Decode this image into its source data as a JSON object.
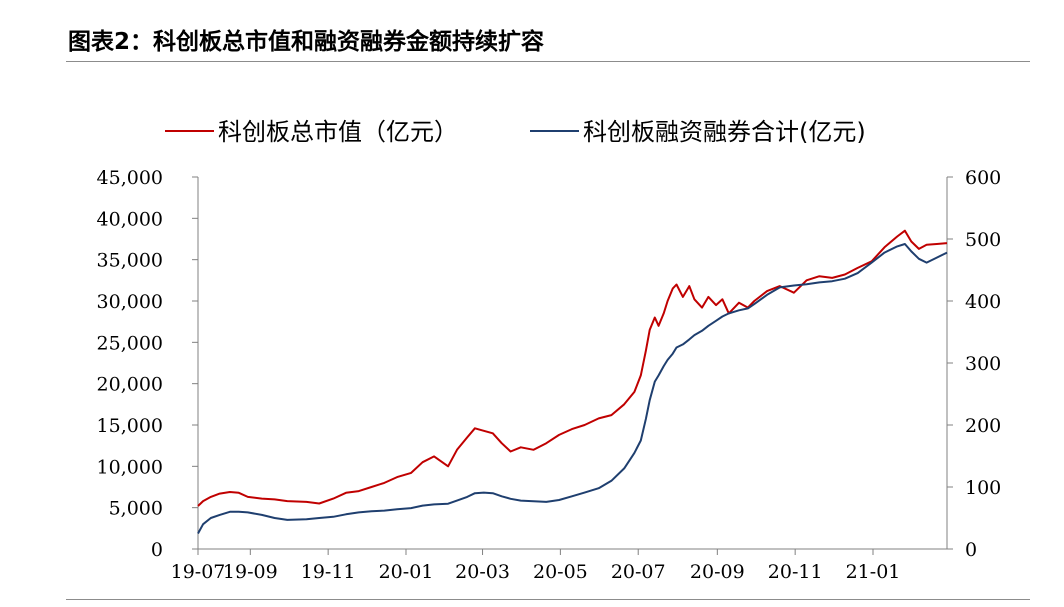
{
  "figure": {
    "title": "图表2：科创板总市值和融资融券金额持续扩容"
  },
  "colors": {
    "series_market_cap": "#c00000",
    "series_margin": "#1f3f6f",
    "axis": "#808080"
  },
  "chart_data": {
    "type": "line",
    "title": "",
    "xlabel": "",
    "ylabel": "",
    "ylabel_right": "",
    "x_ticks": [
      "19-07",
      "19-09",
      "19-11",
      "20-01",
      "20-03",
      "20-05",
      "20-07",
      "20-09",
      "20-11",
      "21-01"
    ],
    "y_left": {
      "lim": [
        0,
        45000
      ],
      "ticks": [
        "0",
        "5,000",
        "10,000",
        "15,000",
        "20,000",
        "25,000",
        "30,000",
        "35,000",
        "40,000",
        "45,000"
      ]
    },
    "y_right": {
      "lim": [
        0,
        600
      ],
      "ticks": [
        "0",
        "100",
        "200",
        "300",
        "400",
        "500",
        "600"
      ]
    },
    "x_range": [
      "2019-07-22",
      "2021-02-28"
    ],
    "legend_position": "top",
    "series": [
      {
        "name": "科创板总市值（亿元）",
        "axis": "left",
        "points": [
          [
            "2019-07-22",
            5200
          ],
          [
            "2019-07-26",
            5800
          ],
          [
            "2019-08-01",
            6300
          ],
          [
            "2019-08-08",
            6700
          ],
          [
            "2019-08-16",
            6900
          ],
          [
            "2019-08-23",
            6800
          ],
          [
            "2019-08-30",
            6300
          ],
          [
            "2019-09-10",
            6100
          ],
          [
            "2019-09-20",
            6000
          ],
          [
            "2019-09-30",
            5800
          ],
          [
            "2019-10-15",
            5700
          ],
          [
            "2019-10-25",
            5500
          ],
          [
            "2019-11-05",
            6100
          ],
          [
            "2019-11-15",
            6800
          ],
          [
            "2019-11-25",
            7000
          ],
          [
            "2019-12-05",
            7500
          ],
          [
            "2019-12-15",
            8000
          ],
          [
            "2019-12-25",
            8700
          ],
          [
            "2020-01-05",
            9200
          ],
          [
            "2020-01-14",
            10500
          ],
          [
            "2020-01-23",
            11200
          ],
          [
            "2020-02-03",
            10000
          ],
          [
            "2020-02-10",
            12000
          ],
          [
            "2020-02-18",
            13500
          ],
          [
            "2020-02-24",
            14600
          ],
          [
            "2020-03-02",
            14300
          ],
          [
            "2020-03-09",
            14000
          ],
          [
            "2020-03-16",
            12800
          ],
          [
            "2020-03-23",
            11800
          ],
          [
            "2020-03-31",
            12300
          ],
          [
            "2020-04-10",
            12000
          ],
          [
            "2020-04-20",
            12800
          ],
          [
            "2020-04-30",
            13800
          ],
          [
            "2020-05-10",
            14500
          ],
          [
            "2020-05-20",
            15000
          ],
          [
            "2020-05-31",
            15800
          ],
          [
            "2020-06-10",
            16200
          ],
          [
            "2020-06-20",
            17500
          ],
          [
            "2020-06-28",
            19000
          ],
          [
            "2020-07-03",
            21000
          ],
          [
            "2020-07-07",
            24000
          ],
          [
            "2020-07-10",
            26500
          ],
          [
            "2020-07-14",
            28000
          ],
          [
            "2020-07-17",
            27000
          ],
          [
            "2020-07-21",
            28500
          ],
          [
            "2020-07-24",
            30000
          ],
          [
            "2020-07-28",
            31500
          ],
          [
            "2020-07-31",
            32000
          ],
          [
            "2020-08-05",
            30500
          ],
          [
            "2020-08-10",
            31800
          ],
          [
            "2020-08-14",
            30200
          ],
          [
            "2020-08-20",
            29200
          ],
          [
            "2020-08-25",
            30500
          ],
          [
            "2020-08-31",
            29500
          ],
          [
            "2020-09-05",
            30200
          ],
          [
            "2020-09-10",
            28500
          ],
          [
            "2020-09-18",
            29800
          ],
          [
            "2020-09-25",
            29200
          ],
          [
            "2020-09-30",
            30000
          ],
          [
            "2020-10-10",
            31200
          ],
          [
            "2020-10-20",
            31800
          ],
          [
            "2020-10-31",
            31000
          ],
          [
            "2020-11-10",
            32500
          ],
          [
            "2020-11-20",
            33000
          ],
          [
            "2020-11-30",
            32800
          ],
          [
            "2020-12-10",
            33200
          ],
          [
            "2020-12-20",
            34000
          ],
          [
            "2020-12-31",
            34800
          ],
          [
            "2021-01-10",
            36500
          ],
          [
            "2021-01-20",
            37800
          ],
          [
            "2021-01-26",
            38500
          ],
          [
            "2021-01-31",
            37200
          ],
          [
            "2021-02-06",
            36300
          ],
          [
            "2021-02-12",
            36800
          ],
          [
            "2021-02-20",
            36900
          ],
          [
            "2021-02-28",
            37000
          ]
        ]
      },
      {
        "name": "科创板融资融券合计(亿元)",
        "axis": "right",
        "points": [
          [
            "2019-07-22",
            25
          ],
          [
            "2019-07-26",
            40
          ],
          [
            "2019-08-01",
            50
          ],
          [
            "2019-08-08",
            55
          ],
          [
            "2019-08-16",
            60
          ],
          [
            "2019-08-23",
            60
          ],
          [
            "2019-08-30",
            59
          ],
          [
            "2019-09-10",
            55
          ],
          [
            "2019-09-20",
            50
          ],
          [
            "2019-09-30",
            47
          ],
          [
            "2019-10-15",
            48
          ],
          [
            "2019-10-25",
            50
          ],
          [
            "2019-11-05",
            52
          ],
          [
            "2019-11-15",
            56
          ],
          [
            "2019-11-25",
            59
          ],
          [
            "2019-12-05",
            61
          ],
          [
            "2019-12-15",
            62
          ],
          [
            "2019-12-25",
            64
          ],
          [
            "2020-01-05",
            66
          ],
          [
            "2020-01-14",
            70
          ],
          [
            "2020-01-23",
            72
          ],
          [
            "2020-02-03",
            73
          ],
          [
            "2020-02-10",
            78
          ],
          [
            "2020-02-18",
            84
          ],
          [
            "2020-02-24",
            90
          ],
          [
            "2020-03-02",
            91
          ],
          [
            "2020-03-09",
            90
          ],
          [
            "2020-03-16",
            85
          ],
          [
            "2020-03-23",
            81
          ],
          [
            "2020-03-31",
            78
          ],
          [
            "2020-04-10",
            77
          ],
          [
            "2020-04-20",
            76
          ],
          [
            "2020-04-30",
            79
          ],
          [
            "2020-05-10",
            85
          ],
          [
            "2020-05-20",
            91
          ],
          [
            "2020-05-31",
            98
          ],
          [
            "2020-06-10",
            110
          ],
          [
            "2020-06-20",
            130
          ],
          [
            "2020-06-28",
            155
          ],
          [
            "2020-07-03",
            175
          ],
          [
            "2020-07-07",
            210
          ],
          [
            "2020-07-10",
            240
          ],
          [
            "2020-07-14",
            270
          ],
          [
            "2020-07-17",
            280
          ],
          [
            "2020-07-21",
            295
          ],
          [
            "2020-07-24",
            305
          ],
          [
            "2020-07-28",
            315
          ],
          [
            "2020-07-31",
            325
          ],
          [
            "2020-08-05",
            330
          ],
          [
            "2020-08-10",
            338
          ],
          [
            "2020-08-14",
            345
          ],
          [
            "2020-08-20",
            352
          ],
          [
            "2020-08-25",
            360
          ],
          [
            "2020-08-31",
            368
          ],
          [
            "2020-09-05",
            375
          ],
          [
            "2020-09-10",
            380
          ],
          [
            "2020-09-18",
            385
          ],
          [
            "2020-09-25",
            388
          ],
          [
            "2020-09-30",
            395
          ],
          [
            "2020-10-10",
            410
          ],
          [
            "2020-10-20",
            422
          ],
          [
            "2020-10-31",
            425
          ],
          [
            "2020-11-10",
            427
          ],
          [
            "2020-11-20",
            430
          ],
          [
            "2020-11-30",
            432
          ],
          [
            "2020-12-10",
            436
          ],
          [
            "2020-12-20",
            445
          ],
          [
            "2020-12-31",
            462
          ],
          [
            "2021-01-10",
            478
          ],
          [
            "2021-01-20",
            488
          ],
          [
            "2021-01-26",
            492
          ],
          [
            "2021-01-31",
            480
          ],
          [
            "2021-02-06",
            468
          ],
          [
            "2021-02-12",
            462
          ],
          [
            "2021-02-20",
            470
          ],
          [
            "2021-02-28",
            478
          ]
        ]
      }
    ]
  }
}
